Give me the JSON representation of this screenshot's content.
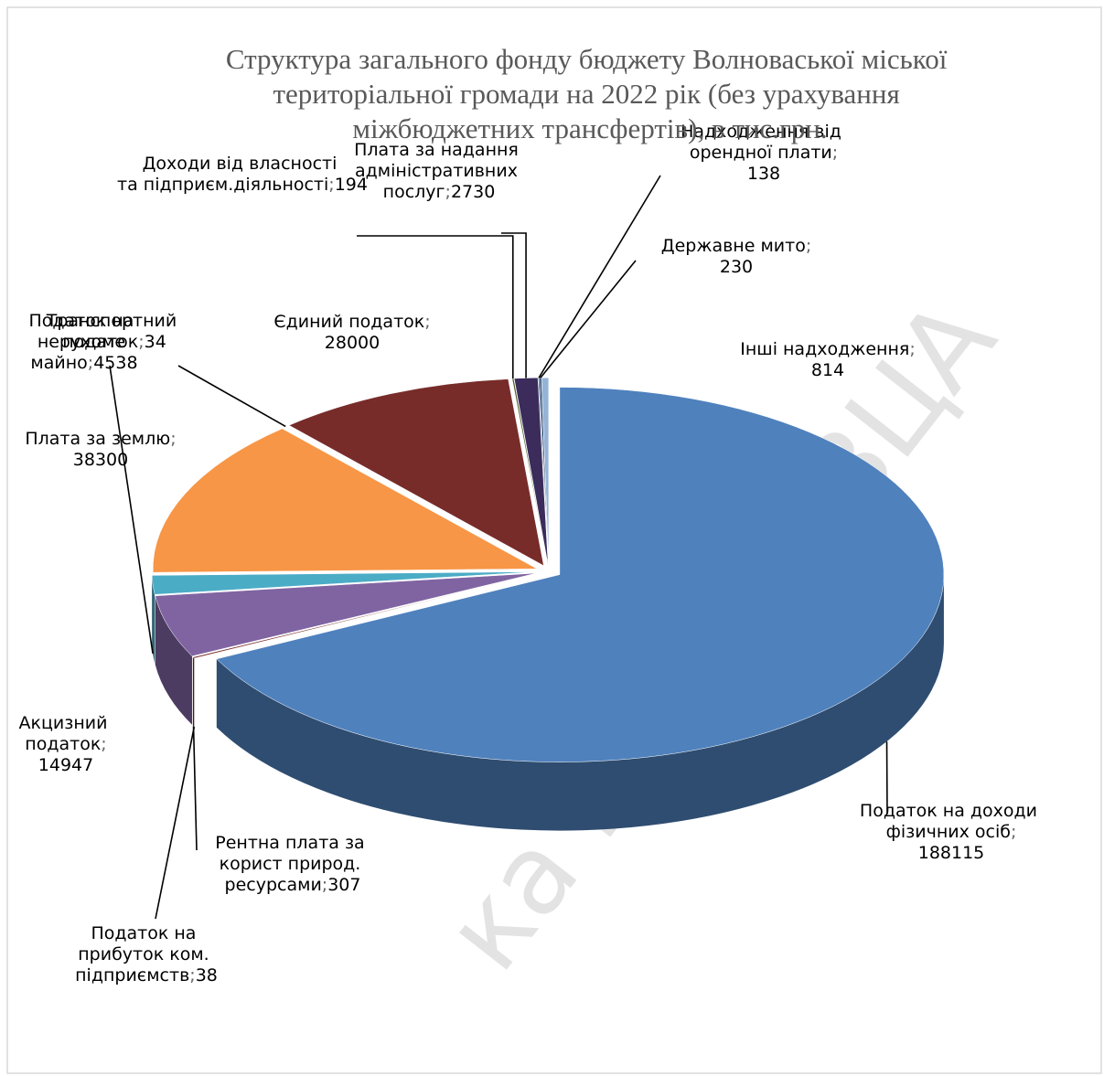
{
  "chart_data": {
    "type": "pie3d",
    "title": "Структура загального фонду бюджету Волноваської міської територіальної громади на  2022 рік (без урахування міжбюджетних трансфертів), в тис.грн.",
    "categories": [
      "Податок на доходи фізичних осіб",
      "Податок на прибуток ком. підприємств",
      "Рентна плата за корист природ. ресурсами",
      "Акцизний податок",
      "Податок на нерухоме майно",
      "Плата за землю",
      "Транспортний податок",
      "Єдиний податок",
      "Доходи від власності та підприєм.діяльності",
      "Плата за надання адміністративних послуг",
      "Надходження від орендної плати",
      "Державне мито",
      "Інші надходження"
    ],
    "values": [
      188115,
      38,
      307,
      14947,
      4538,
      38300,
      34,
      28000,
      194,
      2730,
      138,
      230,
      814
    ],
    "colors": [
      "#4f81bd",
      "#7f2a2a",
      "#772c2a",
      "#8064a2",
      "#4bacc6",
      "#f79646",
      "#17375e",
      "#772c2a",
      "#4f5f28",
      "#3b2c5b",
      "#1f4e79",
      "#2c4d75",
      "#95b3d7"
    ],
    "label_separator": "; ",
    "watermark": "ка міська ВЦА"
  }
}
